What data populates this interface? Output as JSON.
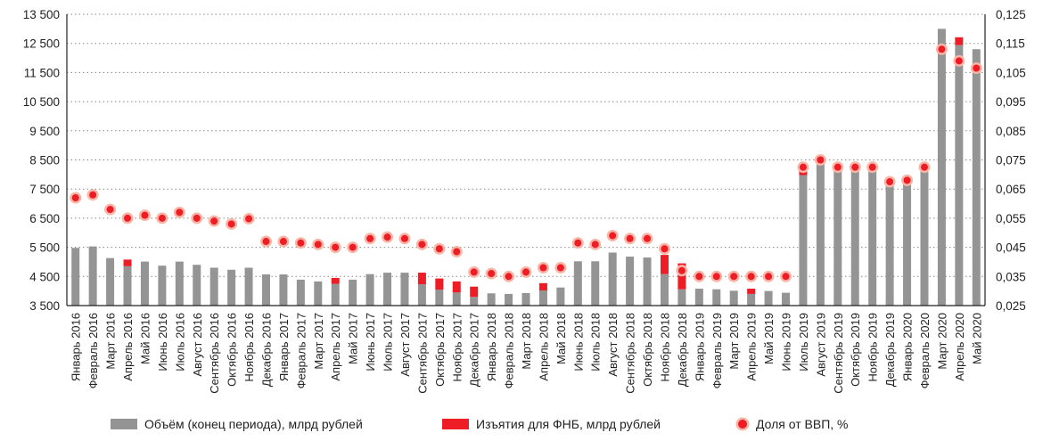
{
  "chart_data": {
    "type": "bar",
    "categories": [
      "Январь 2016",
      "Февраль 2016",
      "Март 2016",
      "Апрель 2016",
      "Май 2016",
      "Июнь 2016",
      "Июль 2016",
      "Август 2016",
      "Сентябрь 2016",
      "Октябрь 2016",
      "Ноябрь 2016",
      "Декабрь 2016",
      "Январь 2017",
      "Февраль 2017",
      "Март 2017",
      "Апрель 2017",
      "Май 2017",
      "Июнь 2017",
      "Июль 2017",
      "Август 2017",
      "Сентябрь 2017",
      "Октябрь 2017",
      "Ноябрь 2017",
      "Декабрь 2017",
      "Январь 2018",
      "Февраль 2018",
      "Март 2018",
      "Апрель 2018",
      "Май 2018",
      "Июнь 2018",
      "Июль 2018",
      "Август 2018",
      "Сентябрь 2018",
      "Октябрь 2018",
      "Ноябрь 2018",
      "Декабрь 2018",
      "Январь 2019",
      "Февраль 2019",
      "Март 2019",
      "Апрель 2019",
      "Май 2019",
      "Июнь 2019",
      "Июль 2019",
      "Август 2019",
      "Сентябрь 2019",
      "Октябрь 2019",
      "Ноябрь 2019",
      "Декабрь 2019",
      "Январь 2020",
      "Февраль 2020",
      "Март 2020",
      "Апрель 2020",
      "Май 2020"
    ],
    "series": [
      {
        "name": "Объём (конец периода), млрд рублей",
        "axis": "left",
        "kind": "bar",
        "color": "#949494",
        "values": [
          5480,
          5530,
          5130,
          4850,
          5010,
          4870,
          5010,
          4900,
          4800,
          4730,
          4800,
          4570,
          4570,
          4390,
          4330,
          4250,
          4390,
          4580,
          4630,
          4630,
          4230,
          4050,
          3950,
          3800,
          3920,
          3900,
          3930,
          4020,
          4120,
          5020,
          5020,
          5320,
          5180,
          5150,
          4580,
          4060,
          4080,
          4060,
          4010,
          3900,
          4000,
          3940,
          7980,
          8480,
          8180,
          8210,
          8120,
          7720,
          7950,
          8350,
          13000,
          12440,
          12300
        ]
      },
      {
        "name": "Изъятия для ФНБ, млрд рублей",
        "axis": "left",
        "kind": "stacked-bar",
        "color": "#ee1c25",
        "values": [
          0,
          0,
          0,
          230,
          0,
          0,
          0,
          0,
          0,
          0,
          0,
          0,
          0,
          0,
          0,
          200,
          0,
          0,
          0,
          0,
          400,
          380,
          380,
          350,
          0,
          0,
          0,
          250,
          0,
          0,
          0,
          0,
          0,
          0,
          660,
          890,
          0,
          0,
          0,
          180,
          0,
          0,
          200,
          0,
          0,
          0,
          0,
          0,
          0,
          0,
          0,
          270,
          0
        ]
      },
      {
        "name": "Доля от ВВП, %",
        "axis": "right",
        "kind": "dot",
        "color": "#ee1c25",
        "values": [
          0.062,
          0.063,
          0.058,
          0.055,
          0.056,
          0.055,
          0.057,
          0.055,
          0.054,
          0.053,
          0.0548,
          0.047,
          0.047,
          0.0465,
          0.046,
          0.045,
          0.045,
          0.048,
          0.0485,
          0.048,
          0.046,
          0.0445,
          0.0435,
          0.0365,
          0.036,
          0.035,
          0.0365,
          0.038,
          0.038,
          0.0465,
          0.046,
          0.049,
          0.048,
          0.048,
          0.0445,
          0.037,
          0.035,
          0.035,
          0.035,
          0.035,
          0.035,
          0.035,
          0.0725,
          0.075,
          0.0725,
          0.0725,
          0.0725,
          0.0675,
          0.068,
          0.0725,
          0.113,
          0.109,
          0.1065
        ]
      }
    ],
    "ylim_left": [
      3500,
      13500
    ],
    "ylim_right": [
      0.025,
      0.125
    ],
    "yticks_left": [
      "3 500",
      "4 500",
      "5 500",
      "6 500",
      "7 500",
      "8 500",
      "9 500",
      "10 500",
      "11 500",
      "12 500",
      "13 500"
    ],
    "yticks_right": [
      "0,025",
      "0,035",
      "0,045",
      "0,055",
      "0,065",
      "0,075",
      "0,085",
      "0,095",
      "0,105",
      "0,115",
      "0,125"
    ],
    "grid": "horizontal-dotted",
    "legend_position": "bottom"
  }
}
